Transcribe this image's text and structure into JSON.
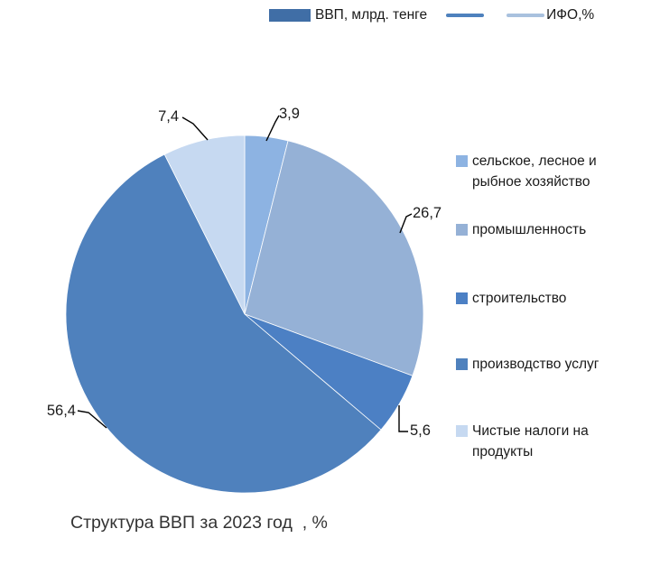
{
  "top_legend": {
    "items": [
      {
        "type": "rect",
        "label": "ВВП, млрд. тенге",
        "color": "#406EA6"
      },
      {
        "type": "line",
        "label": "",
        "color": "#4E81BD"
      },
      {
        "type": "line",
        "label": "ИФО,%",
        "color": "#A9C1DE"
      }
    ]
  },
  "chart_data": {
    "type": "pie",
    "title": "Структура ВВП за 2023 год  , %",
    "unit": "%",
    "legend_position": "right",
    "start_angle_deg": -90,
    "direction": "clockwise",
    "slices": [
      {
        "label": "сельское, лесное и рыбное хозяйство",
        "value": 3.9,
        "value_label": "3,9",
        "color": "#8DB3E2"
      },
      {
        "label": "промышленность",
        "value": 26.7,
        "value_label": "26,7",
        "color": "#95B1D6"
      },
      {
        "label": "строительство",
        "value": 5.6,
        "value_label": "5,6",
        "color": "#4C80C4"
      },
      {
        "label": "производство услуг",
        "value": 56.4,
        "value_label": "56,4",
        "color": "#4F81BD"
      },
      {
        "label": "Чистые налоги на продукты",
        "value": 7.4,
        "value_label": "7,4",
        "color": "#C6D9F1"
      }
    ]
  }
}
